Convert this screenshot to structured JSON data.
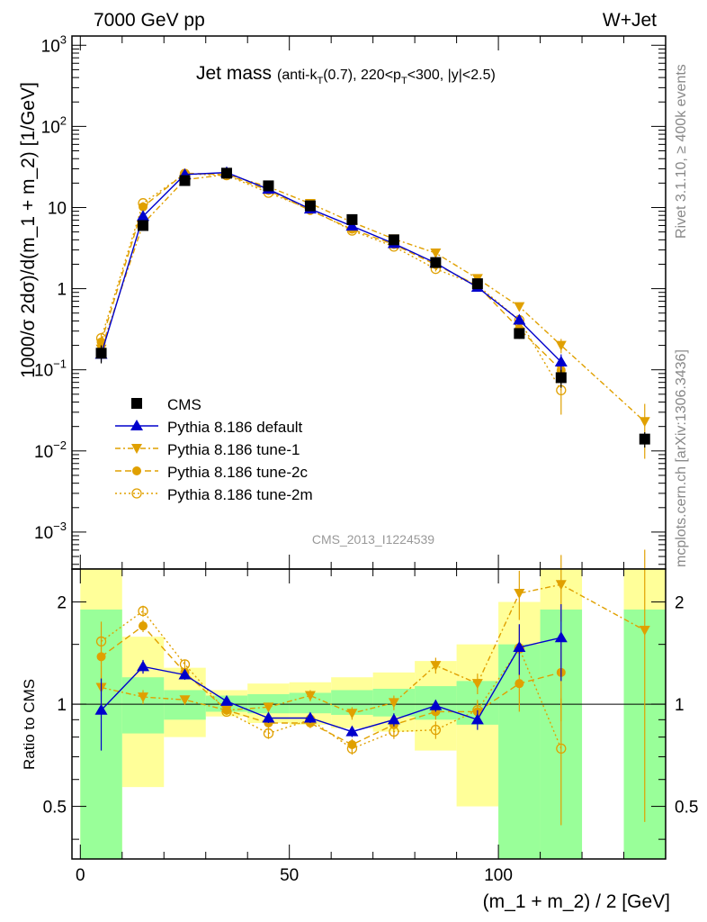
{
  "header": {
    "left": "7000 GeV pp",
    "right": "W+Jet"
  },
  "side": {
    "rivet": "Rivet 3.1.10, ≥ 400k events",
    "mcplots": "mcplots.cern.ch [arXiv:1306.3436]"
  },
  "watermark": "CMS_2013_I1224539",
  "colors": {
    "default": "#0000cc",
    "tune": "#e0a000",
    "band_inner": "#99ff99",
    "band_outer": "#ffff99"
  },
  "chart_data": [
    {
      "type": "scatter",
      "title": "Jet mass",
      "title_sub": "(anti-k",
      "title_sub2": "T",
      "title_sub3": "(0.7), 220<p",
      "title_sub4": "T",
      "title_sub5": "<300, |y|<2.5)",
      "ylabel": "1000/σ 2dσ)/d(m_1 + m_2) [1/GeV]",
      "yscale": "log",
      "ylim": [
        0.00035,
        1300
      ],
      "xlim": [
        -2,
        140
      ],
      "yticks": [
        {
          "v": 0.001,
          "b": "10",
          "e": "−3"
        },
        {
          "v": 0.01,
          "b": "10",
          "e": "−2"
        },
        {
          "v": 0.1,
          "b": "10",
          "e": "−1"
        },
        {
          "v": 1,
          "b": "1",
          "e": ""
        },
        {
          "v": 10,
          "b": "10",
          "e": ""
        },
        {
          "v": 100,
          "b": "10",
          "e": "2"
        },
        {
          "v": 1000,
          "b": "10",
          "e": "3"
        }
      ],
      "legend_position": "bottom-left",
      "series": [
        {
          "name": "CMS",
          "style": "data",
          "x": [
            5,
            15,
            25,
            35,
            45,
            55,
            65,
            75,
            85,
            95,
            105,
            115,
            135
          ],
          "y": [
            0.16,
            6.0,
            21.5,
            26.5,
            18.5,
            10.5,
            7.1,
            4.0,
            2.1,
            1.15,
            0.28,
            0.08,
            0.014
          ],
          "err": [
            0.04,
            0.5,
            1.2,
            1.2,
            1.0,
            0.6,
            0.4,
            0.25,
            0.15,
            0.1,
            0.04,
            0.02,
            0.003
          ]
        },
        {
          "name": "Pythia 8.186 default",
          "style": "default",
          "x": [
            5,
            15,
            25,
            35,
            45,
            55,
            65,
            75,
            85,
            95,
            105,
            115
          ],
          "y": [
            0.155,
            7.8,
            25.5,
            27.0,
            16.8,
            9.6,
            5.9,
            3.6,
            2.07,
            1.04,
            0.41,
            0.125
          ],
          "err": [
            0.03,
            0.4,
            0.8,
            0.8,
            0.6,
            0.4,
            0.3,
            0.2,
            0.12,
            0.08,
            0.05,
            0.03
          ]
        },
        {
          "name": "Pythia 8.186 tune-1",
          "style": "tune1",
          "x": [
            5,
            15,
            25,
            35,
            45,
            55,
            65,
            75,
            85,
            95,
            105,
            115,
            135
          ],
          "y": [
            0.18,
            6.3,
            22.0,
            25.5,
            18.0,
            11.2,
            6.6,
            4.1,
            2.75,
            1.33,
            0.6,
            0.2,
            0.023
          ],
          "err": [
            0.03,
            0.3,
            0.8,
            0.8,
            0.6,
            0.4,
            0.3,
            0.2,
            0.15,
            0.1,
            0.06,
            0.04,
            0.015
          ]
        },
        {
          "name": "Pythia 8.186 tune-2c",
          "style": "tune2c",
          "x": [
            5,
            15,
            25,
            35,
            45,
            55,
            65,
            75,
            85,
            95,
            105,
            115
          ],
          "y": [
            0.22,
            10.2,
            26.5,
            25.5,
            16.2,
            9.2,
            5.4,
            3.5,
            1.98,
            1.09,
            0.32,
            0.099
          ],
          "err": [
            0.03,
            0.4,
            0.8,
            0.8,
            0.6,
            0.4,
            0.3,
            0.2,
            0.12,
            0.08,
            0.04,
            0.02
          ]
        },
        {
          "name": "Pythia 8.186 tune-2m",
          "style": "tune2m",
          "x": [
            5,
            15,
            25,
            35,
            45,
            55,
            65,
            75,
            85,
            95,
            105,
            115
          ],
          "y": [
            0.245,
            11.3,
            26.0,
            25.0,
            15.2,
            9.5,
            5.2,
            3.3,
            1.75,
            1.1,
            0.41,
            0.056
          ],
          "err": [
            0.04,
            0.4,
            0.8,
            0.8,
            0.6,
            0.4,
            0.3,
            0.2,
            0.12,
            0.08,
            0.05,
            0.028
          ]
        }
      ]
    },
    {
      "type": "scatter",
      "ylabel": "Ratio to CMS",
      "xlabel": "(m_1 + m_2) / 2 [GeV]",
      "yscale": "log",
      "ylim": [
        0.35,
        2.5
      ],
      "xlim": [
        -2,
        140
      ],
      "xticks": [
        0,
        50,
        100
      ],
      "yticks": [
        0.5,
        1,
        2
      ],
      "bands": {
        "x0": [
          0,
          10,
          20,
          30,
          40,
          50,
          60,
          70,
          80,
          90,
          100,
          110,
          130
        ],
        "x1": [
          10,
          20,
          30,
          40,
          50,
          60,
          70,
          80,
          90,
          100,
          110,
          120,
          140
        ],
        "inner_lo": [
          0.35,
          0.82,
          0.9,
          0.95,
          0.94,
          0.94,
          0.93,
          0.92,
          0.9,
          0.87,
          0.35,
          0.35,
          0.35
        ],
        "inner_hi": [
          1.9,
          1.2,
          1.1,
          1.06,
          1.07,
          1.08,
          1.1,
          1.11,
          1.13,
          1.17,
          1.5,
          1.9,
          1.9
        ],
        "outer_lo": [
          0.35,
          0.57,
          0.8,
          0.92,
          0.88,
          0.87,
          0.85,
          0.83,
          0.73,
          0.5,
          0.35,
          0.35,
          0.35
        ],
        "outer_hi": [
          2.5,
          1.58,
          1.28,
          1.1,
          1.15,
          1.16,
          1.2,
          1.24,
          1.34,
          1.5,
          2.0,
          2.5,
          2.5
        ]
      },
      "series": [
        {
          "name": "Pythia 8.186 default",
          "style": "default",
          "x": [
            5,
            15,
            25,
            35,
            45,
            55,
            65,
            75,
            85,
            95,
            105,
            115
          ],
          "y": [
            0.96,
            1.29,
            1.22,
            1.02,
            0.91,
            0.91,
            0.83,
            0.9,
            0.99,
            0.9,
            1.47,
            1.57
          ],
          "err": [
            0.23,
            0.06,
            0.04,
            0.02,
            0.03,
            0.03,
            0.03,
            0.04,
            0.04,
            0.06,
            0.25,
            0.4
          ]
        },
        {
          "name": "Pythia 8.186 tune-1",
          "style": "tune1",
          "x": [
            5,
            15,
            25,
            35,
            45,
            55,
            65,
            75,
            85,
            95,
            105,
            115,
            135
          ],
          "y": [
            1.12,
            1.05,
            1.03,
            0.96,
            0.98,
            1.06,
            0.94,
            1.01,
            1.3,
            1.15,
            2.12,
            2.25,
            1.65
          ],
          "err": [
            0.18,
            0.05,
            0.03,
            0.02,
            0.03,
            0.04,
            0.04,
            0.05,
            0.07,
            0.08,
            0.35,
            0.5,
            1.2
          ]
        },
        {
          "name": "Pythia 8.186 tune-2c",
          "style": "tune2c",
          "x": [
            5,
            15,
            25,
            35,
            45,
            55,
            65,
            75,
            85,
            95,
            105,
            115
          ],
          "y": [
            1.38,
            1.7,
            1.24,
            0.96,
            0.88,
            0.88,
            0.76,
            0.87,
            0.95,
            0.95,
            1.15,
            1.24
          ],
          "err": [
            0.2,
            0.07,
            0.04,
            0.02,
            0.03,
            0.03,
            0.03,
            0.04,
            0.05,
            0.07,
            0.2,
            0.35
          ]
        },
        {
          "name": "Pythia 8.186 tune-2m",
          "style": "tune2m",
          "x": [
            5,
            15,
            25,
            35,
            45,
            55,
            65,
            75,
            85,
            95,
            105,
            115
          ],
          "y": [
            1.53,
            1.88,
            1.31,
            0.95,
            0.82,
            0.9,
            0.74,
            0.83,
            0.84,
            0.96,
            1.46,
            0.74
          ],
          "err": [
            0.22,
            0.07,
            0.04,
            0.02,
            0.03,
            0.03,
            0.03,
            0.04,
            0.05,
            0.07,
            0.25,
            0.3
          ]
        }
      ]
    }
  ]
}
